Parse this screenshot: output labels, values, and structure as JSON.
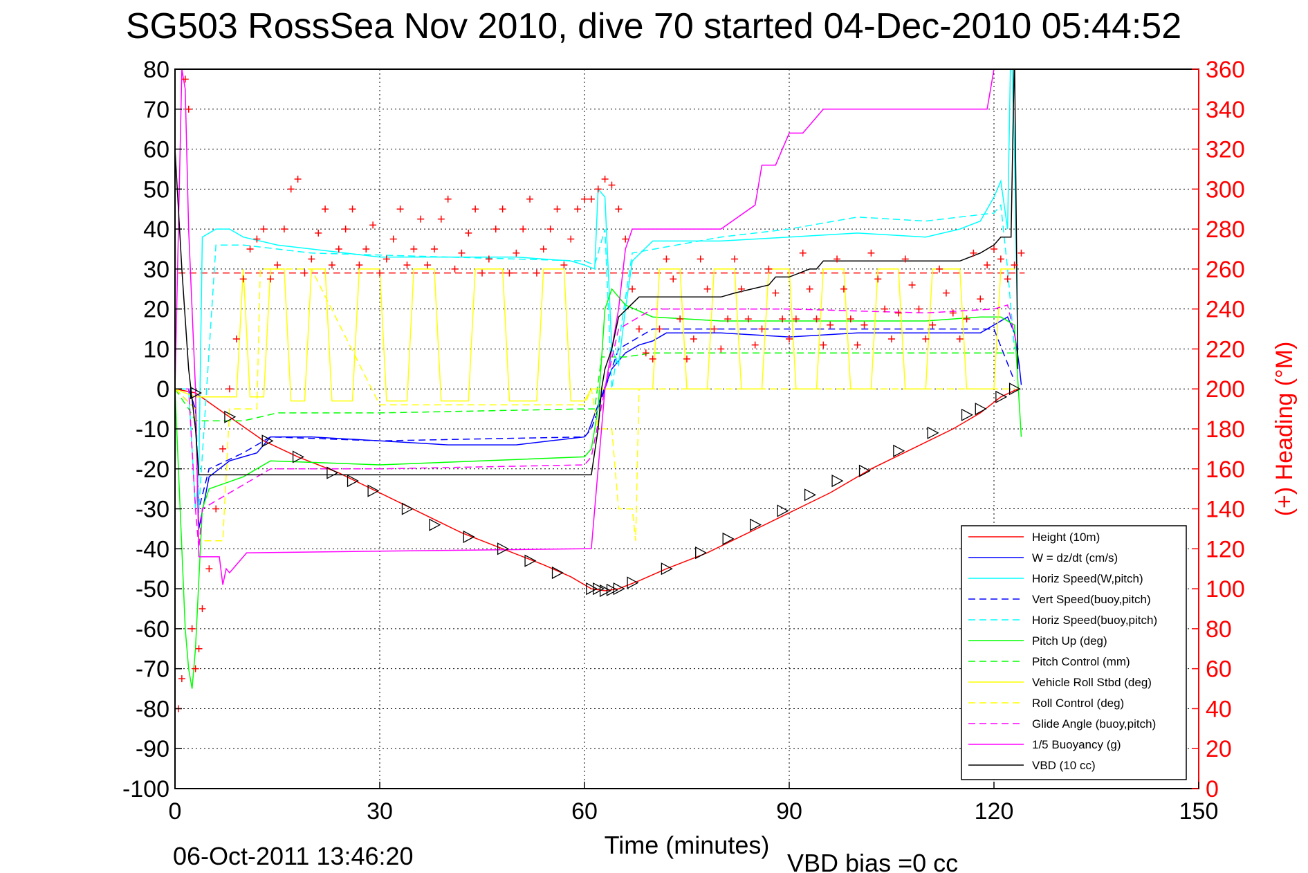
{
  "chart_data": {
    "type": "line",
    "title": "SG503 RossSea Nov 2010, dive 70 started 04-Dec-2010 05:44:52",
    "xlabel": "Time (minutes)",
    "ylabel": "",
    "ylabel_right": "(+) Heading (°M)",
    "xlim": [
      0,
      150
    ],
    "ylim": [
      -100,
      80
    ],
    "ylim_right": [
      0,
      360
    ],
    "x_ticks": [
      "0",
      "30",
      "60",
      "90",
      "120",
      "150"
    ],
    "x_tick_values": [
      0,
      30,
      60,
      90,
      120,
      150
    ],
    "y_ticks": [
      "80",
      "70",
      "60",
      "50",
      "40",
      "30",
      "20",
      "10",
      "0",
      "-10",
      "-20",
      "-30",
      "-40",
      "-50",
      "-60",
      "-70",
      "-80",
      "-90",
      "-100"
    ],
    "y_tick_values": [
      80,
      70,
      60,
      50,
      40,
      30,
      20,
      10,
      0,
      -10,
      -20,
      -30,
      -40,
      -50,
      -60,
      -70,
      -80,
      -90,
      -100
    ],
    "y_right_ticks": [
      "360",
      "340",
      "320",
      "300",
      "280",
      "260",
      "240",
      "220",
      "200",
      "180",
      "160",
      "140",
      "120",
      "100",
      "80",
      "60",
      "40",
      "20",
      "0"
    ],
    "y_right_tick_values": [
      360,
      340,
      320,
      300,
      280,
      260,
      240,
      220,
      200,
      180,
      160,
      140,
      120,
      100,
      80,
      60,
      40,
      20,
      0
    ],
    "grid": true,
    "legend_position": "bottom-right",
    "footer_left": "06-Oct-2011 13:46:20",
    "footer_right": "VBD bias =0 cc",
    "colors": {
      "red": "#ff0000",
      "blue": "#0000ff",
      "cyan": "#00ffff",
      "green": "#00ff00",
      "yellow": "#ffff00",
      "magenta": "#ff00ff",
      "black": "#000000"
    },
    "heading_target": 258,
    "series": [
      {
        "name": "Height (10m)",
        "color": "#ff0000",
        "style": "solid",
        "x": [
          0,
          3,
          8,
          13,
          18,
          24,
          30,
          36,
          42,
          48,
          54,
          58,
          61,
          63,
          65,
          68,
          72,
          78,
          84,
          90,
          96,
          102,
          108,
          114,
          118,
          121,
          123.5
        ],
        "y": [
          0,
          -1,
          -7,
          -13,
          -17,
          -21,
          -26,
          -31,
          -36,
          -40,
          -44,
          -47,
          -50,
          -50.5,
          -50,
          -48,
          -45,
          -41,
          -36,
          -31,
          -26,
          -20,
          -15,
          -10,
          -6,
          -2,
          0
        ]
      },
      {
        "name": "W = dz/dt (cm/s)",
        "color": "#0000ff",
        "style": "solid",
        "x": [
          0,
          2,
          3,
          3.5,
          5,
          8,
          10,
          12,
          13,
          14,
          20,
          30,
          40,
          50,
          55,
          60,
          60.5,
          62,
          64,
          66,
          68,
          70,
          72,
          80,
          90,
          100,
          110,
          118,
          120,
          122,
          123,
          123.7,
          124
        ],
        "y": [
          0,
          0,
          -5,
          -35,
          -22,
          -18,
          -17,
          -16,
          -14,
          -12,
          -12,
          -13,
          -14,
          -14,
          -13,
          -12,
          -11,
          -4,
          5,
          9,
          11,
          12,
          14,
          14,
          13,
          14,
          14,
          14,
          16,
          18,
          14,
          6,
          1
        ]
      },
      {
        "name": "Horiz Speed(W,pitch)",
        "color": "#00ffff",
        "style": "solid",
        "x": [
          0,
          2,
          3,
          3.5,
          4,
          6,
          8,
          10,
          15,
          20,
          30,
          40,
          50,
          58,
          60,
          61.5,
          62,
          63,
          64,
          65,
          66,
          67,
          70,
          80,
          90,
          100,
          110,
          115,
          118,
          120,
          121,
          122,
          122.5,
          123,
          123.5
        ],
        "y": [
          0,
          0,
          -30,
          -20,
          38,
          40,
          40,
          38,
          36,
          35,
          33,
          33,
          33,
          32,
          31,
          30,
          50,
          48,
          10,
          6,
          20,
          32,
          37,
          37,
          38,
          39,
          38,
          40,
          42,
          48,
          52,
          40,
          90,
          60,
          10
        ]
      },
      {
        "name": "Vert Speed(buoy,pitch)",
        "color": "#0000ff",
        "style": "dashed",
        "x": [
          0,
          3,
          3.5,
          5,
          10,
          14,
          30,
          60,
          61,
          65,
          70,
          90,
          120,
          123
        ],
        "y": [
          0,
          -5,
          -30,
          -20,
          -16,
          -12,
          -13,
          -12,
          -10,
          10,
          15,
          15,
          15,
          2
        ]
      },
      {
        "name": "Horiz Speed(buoy,pitch)",
        "color": "#00ffff",
        "style": "dashed",
        "x": [
          0,
          3,
          3.5,
          6,
          10,
          20,
          40,
          60,
          61.5,
          63,
          64,
          67,
          80,
          90,
          100,
          110,
          120,
          121,
          122,
          123
        ],
        "y": [
          0,
          0,
          -30,
          36,
          36,
          34,
          33,
          32,
          31,
          40,
          0,
          34,
          38,
          40,
          43,
          42,
          44,
          46,
          30,
          10
        ]
      },
      {
        "name": "Pitch Up (deg)",
        "color": "#00ff00",
        "style": "solid",
        "x": [
          0,
          1,
          1.5,
          2,
          2.5,
          3,
          4,
          5,
          10,
          14,
          30,
          60,
          61,
          62,
          63,
          64,
          66,
          70,
          80,
          90,
          100,
          110,
          118,
          121,
          123,
          124
        ],
        "y": [
          0,
          -40,
          -60,
          -70,
          -75,
          -65,
          -30,
          -25,
          -22,
          -18,
          -19,
          -17,
          -15,
          -5,
          20,
          25,
          21,
          18,
          17,
          17,
          17,
          17,
          18,
          18,
          16,
          -12
        ]
      },
      {
        "name": "Pitch Control (mm)",
        "color": "#00ff00",
        "style": "dashed",
        "x": [
          0,
          2,
          3,
          6,
          10,
          15,
          30,
          60,
          61.5,
          62.5,
          66,
          70,
          90,
          110,
          120,
          122,
          123.5
        ],
        "y": [
          0,
          -5,
          -8,
          -8,
          -8,
          -6,
          -6,
          -5,
          -5,
          8,
          8,
          9,
          9,
          9,
          9,
          9,
          9
        ]
      },
      {
        "name": "Vehicle Roll Stbd (deg)",
        "color": "#ffff00",
        "style": "solid",
        "x": [
          0,
          3,
          6,
          9,
          10,
          11,
          13,
          14,
          16,
          17,
          19,
          20,
          22,
          23,
          26,
          27,
          30,
          31,
          34,
          35,
          38,
          39,
          43,
          44,
          48,
          49,
          53,
          54,
          57,
          58,
          60,
          61,
          66,
          67,
          70,
          71,
          74,
          75,
          78,
          79,
          82,
          83,
          86,
          87,
          90,
          91,
          94,
          95,
          98,
          99,
          102,
          103,
          106,
          107,
          110,
          111,
          115,
          116,
          120,
          121,
          123
        ],
        "y": [
          0,
          -2,
          -2,
          -2,
          30,
          -2,
          -2,
          30,
          30,
          -3,
          -3,
          30,
          30,
          -3,
          -3,
          30,
          30,
          -3,
          -3,
          30,
          30,
          -3,
          -3,
          30,
          30,
          -3,
          -3,
          30,
          30,
          -3,
          -3,
          0,
          0,
          0,
          0,
          30,
          30,
          0,
          0,
          30,
          30,
          0,
          0,
          30,
          30,
          0,
          0,
          30,
          30,
          0,
          0,
          30,
          30,
          0,
          0,
          30,
          30,
          0,
          0,
          30,
          30
        ]
      },
      {
        "name": "Roll Control (deg)",
        "color": "#ffff00",
        "style": "dashed",
        "x": [
          0,
          3,
          3.5,
          7,
          8,
          12,
          12.5,
          20,
          30,
          40,
          50,
          60,
          61,
          62,
          64,
          65,
          67,
          67.5,
          68,
          70,
          90,
          120,
          123
        ],
        "y": [
          0,
          -5,
          -38,
          -38,
          -5,
          -5,
          30,
          30,
          -4,
          -4,
          -4,
          -4,
          0,
          -10,
          -10,
          -30,
          -30,
          -38,
          0,
          0,
          0,
          0,
          0
        ]
      },
      {
        "name": "Glide Angle (buoy,pitch)",
        "color": "#ff00ff",
        "style": "dashed",
        "x": [
          0,
          2,
          3,
          3.5,
          4,
          6,
          10,
          14,
          30,
          60,
          61,
          63,
          65,
          68,
          70,
          90,
          110,
          120,
          122,
          123.5
        ],
        "y": [
          0,
          0,
          -30,
          -40,
          -30,
          -28,
          -24,
          -20,
          -20,
          -19,
          -17,
          0,
          15,
          18,
          20,
          20,
          19,
          20,
          21,
          10
        ]
      },
      {
        "name": "1/5 Buoyancy (g)",
        "color": "#ff00ff",
        "style": "solid",
        "x": [
          0,
          1,
          1.5,
          2,
          3,
          3.5,
          5,
          6.5,
          7,
          7.5,
          8,
          9,
          10,
          10.5,
          11,
          20,
          30,
          40,
          50,
          60,
          61,
          61.5,
          63,
          65,
          66,
          67,
          68,
          80,
          85,
          86,
          88,
          89,
          90,
          92,
          94,
          95,
          118,
          119,
          120,
          121,
          122
        ],
        "y": [
          0,
          80,
          75,
          40,
          0,
          -42,
          -42,
          -42,
          -49,
          -45,
          -46,
          -44,
          -42,
          -41,
          -41,
          -40.8,
          -40.6,
          -40.4,
          -40.2,
          -40,
          -40,
          -30,
          0,
          20,
          35,
          40,
          40,
          40,
          46,
          56,
          56,
          60,
          64,
          64,
          68,
          70,
          70,
          70,
          80,
          80,
          80
        ]
      },
      {
        "name": "VBD (10 cc)",
        "color": "#000000",
        "style": "solid",
        "x": [
          0,
          1,
          2,
          3,
          3.5,
          10,
          20,
          30,
          40,
          50,
          60,
          61,
          62,
          62.5,
          63,
          64,
          65,
          68,
          70,
          80,
          82,
          87,
          88,
          90,
          93,
          94,
          95,
          98,
          115,
          118,
          120,
          121,
          122,
          122.5,
          123,
          123.5
        ],
        "y": [
          60,
          30,
          5,
          -10,
          -21.5,
          -21.5,
          -21.5,
          -21.5,
          -21.5,
          -21.5,
          -21.5,
          -21.5,
          -10,
          0,
          5,
          10,
          18,
          23,
          23,
          23,
          24,
          26,
          28,
          28,
          30,
          30,
          32,
          32,
          32,
          34,
          36,
          38,
          38,
          38,
          85,
          5
        ]
      }
    ],
    "heading_points": {
      "name": "(+) Heading",
      "color": "#ff0000",
      "marker": "+",
      "x": [
        0.5,
        1,
        1.5,
        2,
        2.5,
        3,
        3.5,
        4,
        5,
        6,
        7,
        8,
        9,
        10,
        11,
        12,
        13,
        14,
        15,
        16,
        17,
        18,
        19,
        20,
        21,
        22,
        23,
        24,
        25,
        26,
        27,
        28,
        29,
        30,
        31,
        32,
        33,
        34,
        35,
        36,
        37,
        38,
        39,
        40,
        41,
        42,
        43,
        44,
        45,
        46,
        47,
        48,
        49,
        50,
        51,
        52,
        53,
        54,
        55,
        56,
        57,
        58,
        59,
        60,
        61,
        62,
        63,
        64,
        65,
        66,
        67,
        68,
        69,
        70,
        71,
        72,
        73,
        74,
        75,
        76,
        77,
        78,
        79,
        80,
        81,
        82,
        83,
        84,
        85,
        86,
        87,
        88,
        89,
        90,
        91,
        92,
        93,
        94,
        95,
        96,
        97,
        98,
        99,
        100,
        101,
        102,
        103,
        104,
        105,
        106,
        107,
        108,
        109,
        110,
        111,
        112,
        113,
        114,
        115,
        116,
        117,
        118,
        119,
        120,
        121,
        122,
        123,
        124
      ],
      "y": [
        40,
        55,
        355,
        340,
        80,
        60,
        70,
        90,
        110,
        140,
        170,
        200,
        225,
        255,
        270,
        275,
        280,
        255,
        262,
        280,
        300,
        305,
        258,
        265,
        278,
        290,
        262,
        270,
        280,
        290,
        262,
        270,
        282,
        258,
        265,
        275,
        290,
        262,
        270,
        285,
        262,
        270,
        285,
        295,
        260,
        268,
        278,
        290,
        258,
        265,
        280,
        290,
        258,
        268,
        280,
        295,
        258,
        270,
        280,
        290,
        262,
        275,
        290,
        295,
        295,
        300,
        305,
        302,
        290,
        275,
        250,
        230,
        218,
        215,
        230,
        265,
        255,
        235,
        215,
        225,
        265,
        250,
        230,
        220,
        235,
        265,
        250,
        235,
        222,
        230,
        260,
        248,
        235,
        225,
        235,
        268,
        250,
        235,
        222,
        232,
        265,
        250,
        235,
        222,
        232,
        268,
        255,
        240,
        225,
        238,
        265,
        252,
        240,
        225,
        232,
        260,
        248,
        238,
        225,
        235,
        268,
        245,
        262,
        270,
        265,
        255,
        262,
        268
      ]
    },
    "depth_markers": {
      "name": "Height markers",
      "x": [
        3,
        8,
        13.5,
        18,
        23,
        26,
        29,
        34,
        38,
        43,
        48,
        52,
        56,
        61,
        62,
        63,
        64,
        65,
        67,
        72,
        77,
        81,
        85,
        89,
        93,
        97,
        101,
        106,
        111,
        116,
        118,
        121,
        123
      ],
      "y": [
        -1,
        -7,
        -13,
        -17,
        -21,
        -23,
        -25.5,
        -30,
        -34,
        -37,
        -40,
        -43,
        -46,
        -50,
        -50,
        -50.5,
        -50.3,
        -50,
        -48.5,
        -45,
        -41,
        -37.5,
        -34,
        -30.5,
        -26.5,
        -23,
        -20.5,
        -15.5,
        -11,
        -6.5,
        -5,
        -2,
        0
      ]
    }
  }
}
